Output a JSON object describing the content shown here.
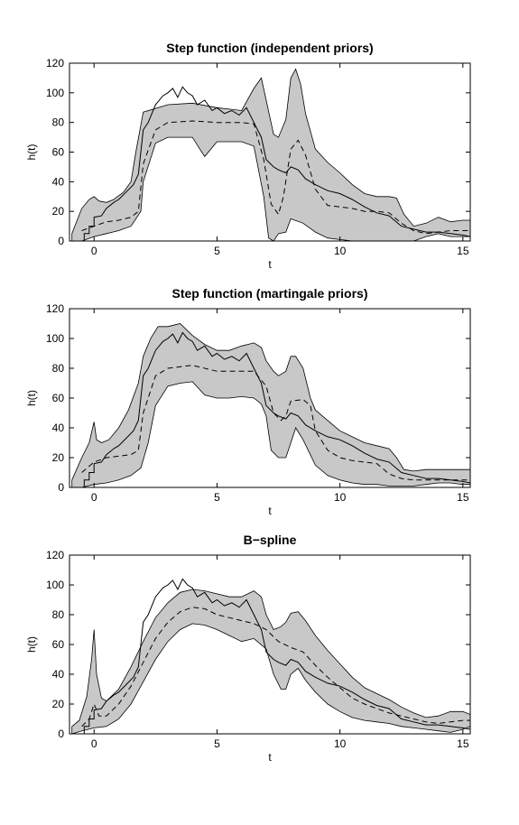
{
  "chart_data": [
    {
      "type": "area",
      "title": "Step function (independent priors)",
      "xlabel": "t",
      "ylabel": "h(t)",
      "xlim": [
        -1,
        15.3
      ],
      "ylim": [
        0,
        120
      ],
      "xticks": [
        "0",
        "5",
        "10",
        "15"
      ],
      "yticks": [
        "0",
        "20",
        "40",
        "60",
        "80",
        "100",
        "120"
      ],
      "grid": false,
      "series": [
        {
          "role": "band-upper",
          "x": [
            -0.9,
            -0.5,
            -0.2,
            0.0,
            0.2,
            0.5,
            0.8,
            1.2,
            1.5,
            1.7,
            2.0,
            3.0,
            4.0,
            5.0,
            6.0,
            6.5,
            6.8,
            7.0,
            7.3,
            7.5,
            7.8,
            8.0,
            8.2,
            8.4,
            8.6,
            9.0,
            9.5,
            10.0,
            10.5,
            11.0,
            11.5,
            12.0,
            12.3,
            12.6,
            13.0,
            13.5,
            14.0,
            14.5,
            15.0,
            15.3
          ],
          "y": [
            5,
            22,
            28,
            30,
            27,
            26,
            28,
            33,
            40,
            60,
            87,
            92,
            93,
            90,
            88,
            103,
            110,
            95,
            72,
            70,
            82,
            110,
            116,
            106,
            86,
            62,
            53,
            46,
            38,
            32,
            30,
            30,
            29,
            18,
            10,
            12,
            16,
            13,
            14,
            14
          ]
        },
        {
          "role": "band-lower",
          "x": [
            -0.9,
            -0.5,
            0.0,
            0.5,
            1.0,
            1.5,
            1.9,
            2.0,
            2.5,
            3.0,
            4.0,
            4.3,
            4.5,
            5.0,
            6.0,
            6.5,
            6.9,
            7.1,
            7.3,
            7.5,
            7.8,
            8.0,
            8.5,
            9.0,
            9.5,
            10.0,
            10.5,
            11.0,
            11.5,
            12.0,
            12.5,
            13.0,
            13.5,
            14.0,
            14.5,
            15.0,
            15.3
          ],
          "y": [
            0,
            0,
            3,
            5,
            7,
            10,
            20,
            40,
            66,
            70,
            70,
            62,
            57,
            67,
            67,
            64,
            30,
            2,
            0,
            5,
            6,
            15,
            12,
            6,
            2,
            1,
            0,
            0,
            0,
            0,
            0,
            0,
            3,
            5,
            3,
            3,
            3
          ]
        },
        {
          "role": "dashed-mean",
          "x": [
            -0.5,
            0.0,
            0.5,
            1.0,
            1.5,
            1.8,
            2.0,
            2.5,
            3.0,
            4.0,
            5.0,
            6.0,
            6.5,
            6.9,
            7.2,
            7.5,
            7.7,
            8.0,
            8.3,
            8.6,
            9.0,
            9.5,
            10.0,
            10.5,
            11.0,
            11.5,
            12.0,
            12.5,
            13.0,
            13.5,
            14.0,
            14.5,
            15.0,
            15.3
          ],
          "y": [
            7,
            10,
            13,
            14,
            16,
            20,
            52,
            75,
            80,
            81,
            80,
            80,
            79,
            55,
            25,
            18,
            30,
            62,
            68,
            58,
            35,
            24,
            23,
            22,
            20,
            20,
            19,
            12,
            7,
            5,
            6,
            7,
            7,
            7
          ]
        },
        {
          "role": "observed",
          "x": [
            -0.6,
            -0.4,
            -0.4,
            -0.2,
            -0.2,
            0.0,
            0.0,
            0.3,
            0.5,
            0.8,
            1.0,
            1.3,
            1.6,
            1.8,
            2.0,
            2.2,
            2.5,
            2.8,
            3.0,
            3.2,
            3.4,
            3.6,
            3.8,
            4.0,
            4.2,
            4.5,
            4.8,
            5.0,
            5.3,
            5.6,
            5.9,
            6.2,
            6.5,
            6.8,
            7.0,
            7.3,
            7.5,
            7.8,
            8.0,
            8.3,
            8.6,
            9.0,
            9.5,
            10.0,
            10.5,
            11.0,
            11.5,
            12.0,
            12.5,
            13.0,
            13.5,
            14.0,
            14.5,
            15.0,
            15.3
          ],
          "y": [
            0,
            0,
            5,
            5,
            10,
            10,
            16,
            17,
            22,
            26,
            28,
            33,
            38,
            45,
            75,
            80,
            92,
            98,
            100,
            103,
            97,
            104,
            100,
            98,
            92,
            95,
            88,
            90,
            86,
            88,
            85,
            90,
            80,
            70,
            55,
            50,
            48,
            46,
            50,
            48,
            42,
            38,
            34,
            32,
            28,
            23,
            19,
            17,
            10,
            8,
            6,
            6,
            5,
            4,
            3
          ]
        }
      ]
    },
    {
      "type": "area",
      "title": "Step function (martingale priors)",
      "xlabel": "t",
      "ylabel": "h(t)",
      "xlim": [
        -1,
        15.3
      ],
      "ylim": [
        0,
        120
      ],
      "xticks": [
        "0",
        "5",
        "10",
        "15"
      ],
      "yticks": [
        "0",
        "20",
        "40",
        "60",
        "80",
        "100",
        "120"
      ],
      "grid": false,
      "series": [
        {
          "role": "band-upper",
          "x": [
            -0.9,
            -0.5,
            -0.2,
            0.0,
            0.1,
            0.3,
            0.6,
            1.0,
            1.4,
            1.8,
            2.0,
            2.3,
            2.6,
            3.0,
            3.5,
            4.0,
            4.5,
            5.0,
            5.5,
            6.0,
            6.5,
            6.8,
            7.0,
            7.3,
            7.5,
            7.8,
            8.0,
            8.2,
            8.5,
            8.8,
            9.0,
            9.5,
            10.0,
            10.5,
            11.0,
            11.5,
            12.0,
            12.3,
            12.6,
            13.0,
            13.5,
            14.0,
            14.5,
            15.0,
            15.3
          ],
          "y": [
            5,
            20,
            30,
            44,
            32,
            30,
            32,
            40,
            52,
            70,
            88,
            100,
            108,
            108,
            110,
            102,
            96,
            92,
            92,
            95,
            97,
            94,
            85,
            78,
            75,
            78,
            88,
            88,
            80,
            60,
            52,
            45,
            38,
            34,
            30,
            28,
            26,
            20,
            12,
            11,
            12,
            12,
            12,
            12,
            12
          ]
        },
        {
          "role": "band-lower",
          "x": [
            -0.9,
            -0.5,
            0.0,
            0.5,
            1.0,
            1.5,
            1.9,
            2.2,
            2.5,
            3.0,
            3.5,
            4.0,
            4.5,
            5.0,
            5.5,
            6.0,
            6.5,
            6.8,
            7.0,
            7.2,
            7.5,
            7.8,
            8.0,
            8.2,
            8.5,
            9.0,
            9.5,
            10.0,
            10.5,
            11.0,
            11.5,
            12.0,
            12.5,
            13.0,
            13.5,
            14.0,
            14.5,
            15.0,
            15.3
          ],
          "y": [
            0,
            0,
            2,
            3,
            5,
            8,
            13,
            30,
            55,
            68,
            70,
            71,
            62,
            60,
            60,
            61,
            60,
            56,
            48,
            25,
            20,
            20,
            30,
            40,
            32,
            15,
            8,
            5,
            3,
            2,
            2,
            1,
            1,
            1,
            2,
            3,
            3,
            2,
            2
          ]
        },
        {
          "role": "dashed-mean",
          "x": [
            -0.5,
            0.0,
            0.5,
            1.0,
            1.5,
            1.8,
            2.0,
            2.5,
            3.0,
            4.0,
            5.0,
            6.0,
            6.5,
            7.0,
            7.3,
            7.6,
            7.8,
            8.0,
            8.5,
            8.8,
            9.0,
            9.5,
            10.0,
            10.5,
            11.0,
            11.5,
            12.0,
            12.5,
            13.0,
            14.0,
            14.5,
            15.0,
            15.3
          ],
          "y": [
            10,
            17,
            20,
            21,
            22,
            25,
            50,
            75,
            80,
            82,
            78,
            78,
            78,
            68,
            50,
            45,
            48,
            58,
            59,
            55,
            38,
            25,
            20,
            18,
            17,
            16,
            9,
            6,
            5,
            5,
            5,
            5,
            5
          ]
        },
        {
          "role": "observed",
          "x": [
            -0.6,
            -0.4,
            -0.4,
            -0.2,
            -0.2,
            0.0,
            0.0,
            0.3,
            0.5,
            0.8,
            1.0,
            1.3,
            1.6,
            1.8,
            2.0,
            2.2,
            2.5,
            2.8,
            3.0,
            3.2,
            3.4,
            3.6,
            3.8,
            4.0,
            4.2,
            4.5,
            4.8,
            5.0,
            5.3,
            5.6,
            5.9,
            6.2,
            6.5,
            6.8,
            7.0,
            7.3,
            7.5,
            7.8,
            8.0,
            8.3,
            8.6,
            9.0,
            9.5,
            10.0,
            10.5,
            11.0,
            11.5,
            12.0,
            12.5,
            13.0,
            13.5,
            14.0,
            14.5,
            15.0,
            15.3
          ],
          "y": [
            0,
            0,
            5,
            5,
            10,
            10,
            16,
            17,
            22,
            26,
            28,
            33,
            38,
            45,
            75,
            80,
            92,
            98,
            100,
            103,
            97,
            104,
            100,
            98,
            92,
            95,
            88,
            90,
            86,
            88,
            85,
            90,
            80,
            70,
            55,
            50,
            48,
            46,
            50,
            48,
            42,
            38,
            34,
            32,
            28,
            23,
            19,
            17,
            10,
            8,
            6,
            6,
            5,
            4,
            3
          ]
        }
      ]
    },
    {
      "type": "area",
      "title": "B−spline",
      "xlabel": "t",
      "ylabel": "h(t)",
      "xlim": [
        -1,
        15.3
      ],
      "ylim": [
        0,
        120
      ],
      "xticks": [
        "0",
        "5",
        "10",
        "15"
      ],
      "yticks": [
        "0",
        "20",
        "40",
        "60",
        "80",
        "100",
        "120"
      ],
      "grid": false,
      "series": [
        {
          "role": "band-upper",
          "x": [
            -0.9,
            -0.6,
            -0.3,
            -0.1,
            0.0,
            0.1,
            0.3,
            0.5,
            1.0,
            1.5,
            2.0,
            2.5,
            3.0,
            3.5,
            4.0,
            4.5,
            5.0,
            5.5,
            6.0,
            6.5,
            6.8,
            7.0,
            7.3,
            7.6,
            7.8,
            8.0,
            8.3,
            8.6,
            9.0,
            9.5,
            10.0,
            10.5,
            11.0,
            11.5,
            12.0,
            12.5,
            13.0,
            13.5,
            14.0,
            14.5,
            15.0,
            15.3
          ],
          "y": [
            5,
            9,
            25,
            50,
            70,
            40,
            24,
            22,
            30,
            45,
            62,
            78,
            88,
            95,
            97,
            96,
            94,
            92,
            92,
            96,
            92,
            80,
            70,
            72,
            75,
            81,
            82,
            76,
            66,
            56,
            47,
            38,
            31,
            27,
            23,
            18,
            14,
            11,
            12,
            15,
            15,
            13
          ]
        },
        {
          "role": "band-lower",
          "x": [
            -0.9,
            -0.5,
            0.0,
            0.5,
            1.0,
            1.5,
            2.0,
            2.5,
            3.0,
            3.5,
            4.0,
            4.5,
            5.0,
            5.5,
            6.0,
            6.5,
            7.0,
            7.3,
            7.6,
            7.8,
            8.0,
            8.3,
            8.6,
            9.0,
            9.5,
            10.0,
            10.5,
            11.0,
            11.5,
            12.0,
            12.5,
            13.0,
            13.5,
            14.0,
            14.5,
            15.0,
            15.3
          ],
          "y": [
            0,
            2,
            4,
            5,
            10,
            20,
            35,
            50,
            62,
            70,
            74,
            73,
            70,
            66,
            62,
            64,
            57,
            40,
            30,
            30,
            40,
            44,
            36,
            28,
            20,
            15,
            11,
            9,
            8,
            7,
            5,
            4,
            3,
            2,
            1,
            3,
            5
          ]
        },
        {
          "role": "dashed-mean",
          "x": [
            -0.5,
            -0.2,
            0.0,
            0.2,
            0.5,
            1.0,
            1.5,
            2.0,
            2.5,
            3.0,
            3.5,
            4.0,
            4.5,
            5.0,
            5.5,
            6.0,
            6.5,
            7.0,
            7.5,
            8.0,
            8.5,
            9.0,
            9.5,
            10.0,
            10.5,
            11.0,
            11.5,
            12.0,
            12.5,
            13.0,
            13.5,
            14.0,
            14.5,
            15.0,
            15.3
          ],
          "y": [
            5,
            10,
            20,
            12,
            12,
            20,
            32,
            48,
            64,
            75,
            82,
            85,
            84,
            80,
            78,
            76,
            74,
            70,
            62,
            58,
            55,
            46,
            38,
            31,
            24,
            20,
            17,
            14,
            12,
            10,
            8,
            7,
            8,
            9,
            9
          ]
        },
        {
          "role": "observed",
          "x": [
            -0.6,
            -0.4,
            -0.4,
            -0.2,
            -0.2,
            0.0,
            0.0,
            0.3,
            0.5,
            0.8,
            1.0,
            1.3,
            1.6,
            1.8,
            2.0,
            2.2,
            2.5,
            2.8,
            3.0,
            3.2,
            3.4,
            3.6,
            3.8,
            4.0,
            4.2,
            4.5,
            4.8,
            5.0,
            5.3,
            5.6,
            5.9,
            6.2,
            6.5,
            6.8,
            7.0,
            7.3,
            7.5,
            7.8,
            8.0,
            8.3,
            8.6,
            9.0,
            9.5,
            10.0,
            10.5,
            11.0,
            11.5,
            12.0,
            12.5,
            13.0,
            13.5,
            14.0,
            14.5,
            15.0,
            15.3
          ],
          "y": [
            0,
            0,
            5,
            5,
            10,
            10,
            16,
            17,
            22,
            26,
            28,
            33,
            38,
            45,
            75,
            80,
            92,
            98,
            100,
            103,
            97,
            104,
            100,
            98,
            92,
            95,
            88,
            90,
            86,
            88,
            85,
            90,
            80,
            70,
            55,
            50,
            48,
            46,
            50,
            48,
            42,
            38,
            34,
            32,
            28,
            23,
            19,
            17,
            10,
            8,
            6,
            6,
            5,
            4,
            3
          ]
        }
      ]
    }
  ],
  "colors": {
    "band_fill": "#c8c8c8",
    "line": "#000000",
    "background": "#ffffff"
  }
}
